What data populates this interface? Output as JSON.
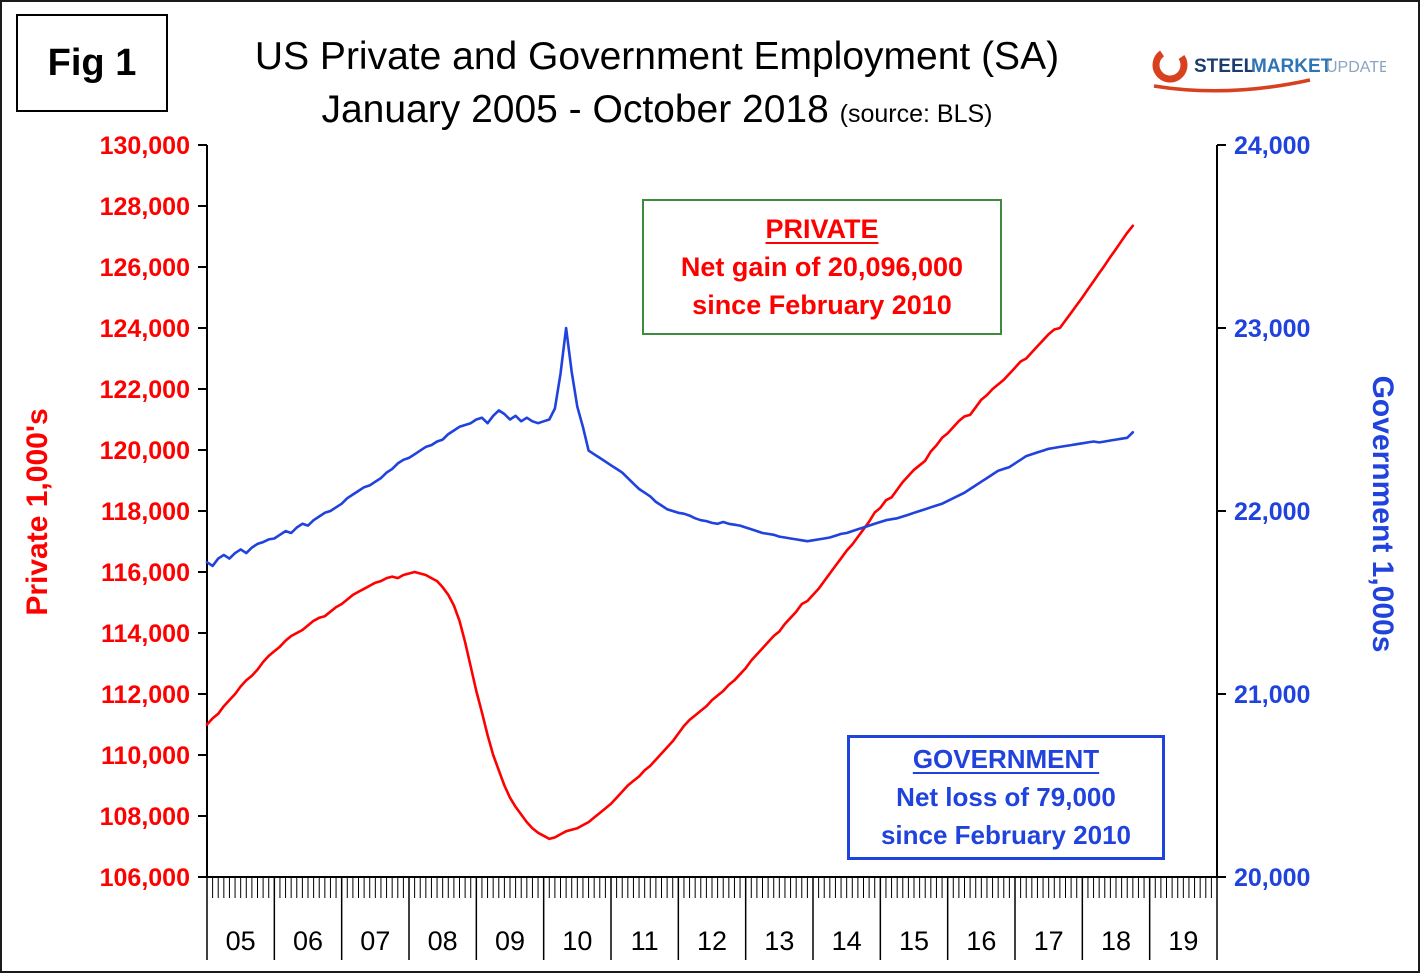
{
  "figure": {
    "label": "Fig 1"
  },
  "title": {
    "line1": "US Private and Government Employment (SA)",
    "line2": "January 2005 - October 2018",
    "source": "(source: BLS)"
  },
  "logo": {
    "word1": "STEEL",
    "word2": "MARKET",
    "word3": "UPDATE"
  },
  "annotations": {
    "private": {
      "title": "PRIVATE",
      "line1": "Net gain of 20,096,000",
      "line2": "since February 2010",
      "text_color": "#ff0000",
      "border_color": "#3d8b3d"
    },
    "government": {
      "title": "GOVERNMENT",
      "line1": "Net loss of 79,000",
      "line2": "since February 2010",
      "text_color": "#2042dd",
      "border_color": "#2042dd"
    }
  },
  "chart_data": {
    "type": "line",
    "x_start": "2005-01",
    "x_end": "2018-10",
    "x_axis_years": [
      "05",
      "06",
      "07",
      "08",
      "09",
      "10",
      "11",
      "12",
      "13",
      "14",
      "15",
      "16",
      "17",
      "18",
      "19"
    ],
    "x_axis_total_months": 180,
    "grid": false,
    "legend": "none",
    "left_axis": {
      "title": "Private 1,000's",
      "min": 106000,
      "max": 130000,
      "step": 2000,
      "color": "#ff0000"
    },
    "right_axis": {
      "title": "Government 1,000s",
      "min": 20000,
      "max": 24000,
      "step": 1000,
      "color": "#2042dd"
    },
    "series": [
      {
        "name": "Private",
        "axis": "left",
        "color": "#ff0000",
        "monthly_from": "2005-01",
        "values": [
          111000,
          111200,
          111350,
          111600,
          111800,
          112000,
          112250,
          112450,
          112600,
          112800,
          113050,
          113250,
          113400,
          113550,
          113750,
          113900,
          114000,
          114100,
          114250,
          114400,
          114500,
          114550,
          114700,
          114850,
          114950,
          115100,
          115250,
          115350,
          115450,
          115550,
          115650,
          115700,
          115800,
          115850,
          115800,
          115900,
          115950,
          116000,
          115950,
          115900,
          115800,
          115700,
          115500,
          115250,
          114900,
          114400,
          113700,
          112900,
          112100,
          111400,
          110650,
          110000,
          109500,
          109000,
          108600,
          108300,
          108050,
          107800,
          107600,
          107450,
          107350,
          107250,
          107300,
          107400,
          107500,
          107550,
          107600,
          107700,
          107800,
          107950,
          108100,
          108250,
          108400,
          108600,
          108800,
          109000,
          109150,
          109300,
          109500,
          109650,
          109850,
          110050,
          110250,
          110450,
          110700,
          110950,
          111150,
          111300,
          111450,
          111600,
          111800,
          111950,
          112100,
          112300,
          112450,
          112650,
          112850,
          113100,
          113300,
          113500,
          113700,
          113900,
          114050,
          114300,
          114500,
          114700,
          114950,
          115050,
          115250,
          115450,
          115700,
          115950,
          116200,
          116450,
          116700,
          116900,
          117150,
          117400,
          117650,
          117950,
          118100,
          118350,
          118450,
          118700,
          118950,
          119150,
          119350,
          119500,
          119650,
          119950,
          120150,
          120400,
          120550,
          120750,
          120950,
          121100,
          121150,
          121400,
          121650,
          121800,
          122000,
          122150,
          122300,
          122500,
          122700,
          122900,
          123000,
          123200,
          123400,
          123600,
          123800,
          123950,
          124000,
          124250,
          124500,
          124750,
          125000,
          125270,
          125530,
          125800,
          126060,
          126330,
          126590,
          126860,
          127120,
          127350
        ]
      },
      {
        "name": "Government",
        "axis": "right",
        "color": "#2042dd",
        "monthly_from": "2005-01",
        "values": [
          21720,
          21700,
          21740,
          21760,
          21740,
          21770,
          21790,
          21770,
          21800,
          21820,
          21830,
          21845,
          21850,
          21870,
          21890,
          21880,
          21910,
          21930,
          21920,
          21950,
          21970,
          21990,
          22000,
          22020,
          22040,
          22070,
          22090,
          22110,
          22130,
          22140,
          22160,
          22180,
          22210,
          22230,
          22260,
          22280,
          22290,
          22310,
          22330,
          22350,
          22360,
          22380,
          22390,
          22420,
          22440,
          22460,
          22470,
          22480,
          22500,
          22510,
          22480,
          22520,
          22550,
          22530,
          22500,
          22520,
          22490,
          22510,
          22490,
          22480,
          22490,
          22500,
          22560,
          22750,
          23000,
          22760,
          22570,
          22460,
          22330,
          22310,
          22290,
          22270,
          22250,
          22230,
          22210,
          22180,
          22150,
          22120,
          22100,
          22080,
          22050,
          22030,
          22010,
          22000,
          21990,
          21985,
          21975,
          21960,
          21950,
          21945,
          21935,
          21930,
          21940,
          21930,
          21925,
          21920,
          21910,
          21900,
          21890,
          21880,
          21875,
          21870,
          21860,
          21855,
          21850,
          21845,
          21840,
          21835,
          21840,
          21845,
          21850,
          21855,
          21865,
          21875,
          21880,
          21890,
          21900,
          21910,
          21920,
          21930,
          21940,
          21950,
          21955,
          21960,
          21970,
          21980,
          21990,
          22000,
          22010,
          22020,
          22030,
          22040,
          22055,
          22070,
          22085,
          22100,
          22120,
          22140,
          22160,
          22180,
          22200,
          22220,
          22230,
          22240,
          22260,
          22280,
          22300,
          22310,
          22320,
          22330,
          22340,
          22345,
          22350,
          22355,
          22360,
          22365,
          22370,
          22375,
          22380,
          22375,
          22380,
          22385,
          22390,
          22395,
          22400,
          22430
        ]
      }
    ]
  }
}
